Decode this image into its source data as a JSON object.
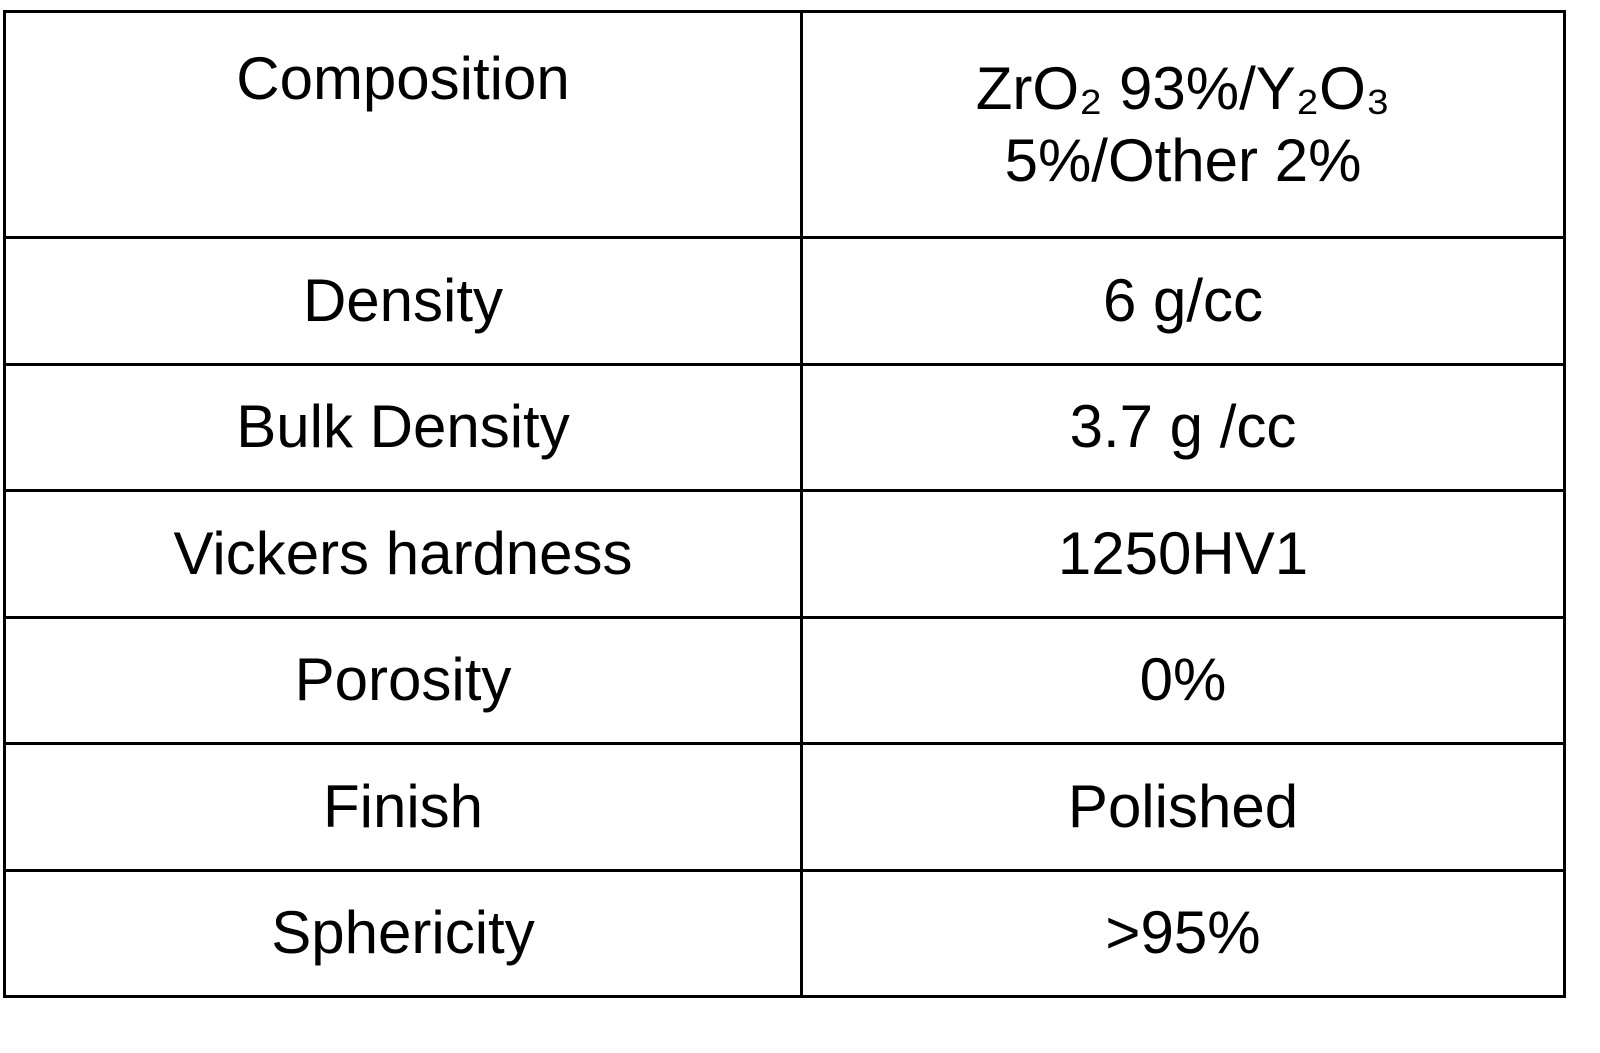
{
  "table": {
    "rows": [
      [
        "Composition",
        "ZrO₂ 93%/Y₂O₃ 5%/Other 2%"
      ],
      [
        "Density",
        "6 g/cc"
      ],
      [
        "Bulk Density",
        "3.7 g /cc"
      ],
      [
        "Vickers hardness",
        "1250HV1"
      ],
      [
        "Porosity",
        "0%"
      ],
      [
        "Finish",
        "Polished"
      ],
      [
        "Sphericity",
        ">95%"
      ]
    ]
  }
}
